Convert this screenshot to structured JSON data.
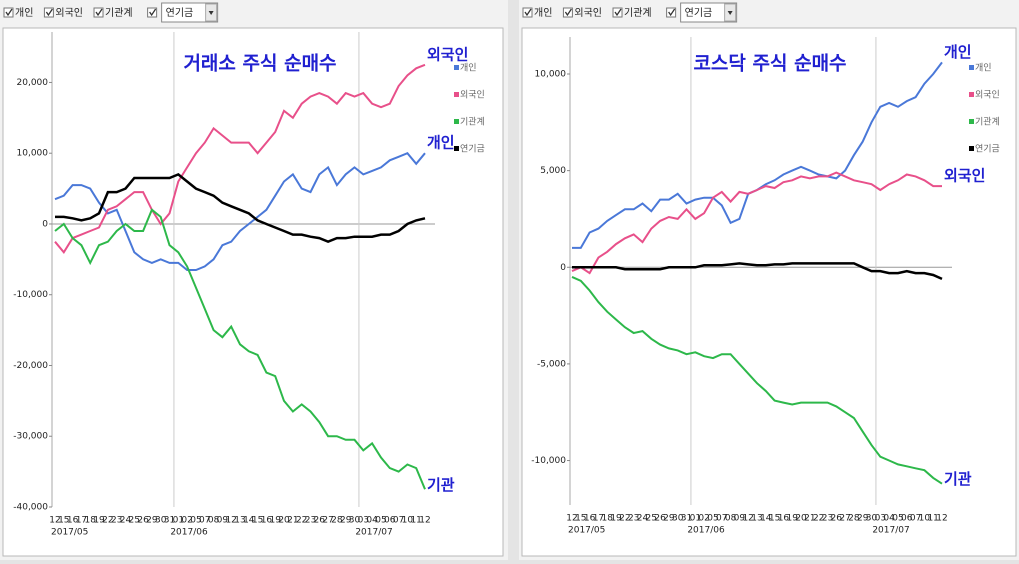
{
  "toolbars": [
    {
      "checkboxes": [
        "개인",
        "외국인",
        "기관계"
      ],
      "dropdown": "연기금"
    },
    {
      "checkboxes": [
        "개인",
        "외국인",
        "기관계"
      ],
      "dropdown": "연기금"
    }
  ],
  "chart_data": [
    {
      "type": "line",
      "title": "거래소 주식 순매수",
      "categories": [
        "12",
        "15",
        "16",
        "17",
        "18",
        "19",
        "22",
        "23",
        "24",
        "25",
        "26",
        "29",
        "30",
        "31",
        "01",
        "02",
        "05",
        "07",
        "08",
        "09",
        "12",
        "13",
        "14",
        "15",
        "16",
        "19",
        "20",
        "21",
        "22",
        "23",
        "26",
        "27",
        "28",
        "29",
        "30",
        "03",
        "04",
        "05",
        "06",
        "07",
        "10",
        "11",
        "12"
      ],
      "months": [
        "2017/05",
        "2017/06",
        "2017/07"
      ],
      "ylim": [
        -40000,
        26000
      ],
      "yticks": [
        {
          "value": -40000,
          "label": "-40,000"
        },
        {
          "value": -30000,
          "label": "-30,000"
        },
        {
          "value": -20000,
          "label": "-20,000"
        },
        {
          "value": -10000,
          "label": "-10,000"
        },
        0,
        {
          "value": 10000,
          "label": "10,000"
        },
        {
          "value": 20000,
          "label": "20,000"
        }
      ],
      "series": [
        {
          "name": "개인",
          "color": "#4a78d8",
          "end_label": "개인",
          "values": [
            3500,
            4000,
            5500,
            5500,
            5000,
            3000,
            1500,
            2000,
            -1000,
            -4000,
            -5000,
            -5500,
            -5000,
            -5500,
            -5500,
            -6500,
            -6500,
            -6000,
            -5000,
            -3000,
            -2500,
            -1000,
            0,
            1000,
            2000,
            4000,
            6000,
            7000,
            5000,
            4500,
            7000,
            8000,
            5500,
            7000,
            8000,
            7000,
            7500,
            8000,
            9000,
            9500,
            10000,
            8500,
            10000
          ]
        },
        {
          "name": "외국인",
          "color": "#e8508a",
          "end_label": "외국인",
          "values": [
            -2500,
            -4000,
            -2000,
            -1500,
            -1000,
            -500,
            2000,
            2500,
            3500,
            4500,
            4500,
            2000,
            0,
            1500,
            6000,
            8000,
            10000,
            11500,
            13500,
            12500,
            11500,
            11500,
            11500,
            10000,
            11500,
            13000,
            16000,
            15000,
            17000,
            18000,
            18500,
            18000,
            17000,
            18500,
            18000,
            18500,
            17000,
            16500,
            17000,
            19500,
            21000,
            22000,
            22500
          ]
        },
        {
          "name": "기관계",
          "color": "#2db84a",
          "end_label": "기관",
          "values": [
            -1000,
            0,
            -2000,
            -3000,
            -5500,
            -3000,
            -2500,
            -1000,
            0,
            -1000,
            -1000,
            2000,
            1000,
            -3000,
            -4000,
            -6000,
            -9000,
            -12000,
            -15000,
            -16000,
            -14500,
            -17000,
            -18000,
            -18500,
            -21000,
            -21500,
            -25000,
            -26500,
            -25500,
            -26500,
            -28000,
            -30000,
            -30000,
            -30500,
            -30500,
            -32000,
            -31000,
            -33000,
            -34500,
            -35000,
            -34000,
            -34500,
            -37500
          ]
        },
        {
          "name": "연기금",
          "color": "#000000",
          "values": [
            1000,
            1000,
            800,
            500,
            800,
            1500,
            4500,
            4500,
            5000,
            6500,
            6500,
            6500,
            6500,
            6500,
            7000,
            6000,
            5000,
            4500,
            4000,
            3000,
            2500,
            2000,
            1500,
            500,
            0,
            -500,
            -1000,
            -1500,
            -1500,
            -1800,
            -2000,
            -2500,
            -2000,
            -2000,
            -1800,
            -1800,
            -1800,
            -1500,
            -1500,
            -1000,
            0,
            500,
            800
          ]
        }
      ]
    },
    {
      "type": "line",
      "title": "코스닥 주식 순매수",
      "categories": [
        "12",
        "15",
        "16",
        "17",
        "18",
        "19",
        "22",
        "23",
        "24",
        "25",
        "26",
        "29",
        "30",
        "31",
        "01",
        "02",
        "05",
        "07",
        "08",
        "09",
        "12",
        "13",
        "14",
        "15",
        "16",
        "19",
        "20",
        "21",
        "22",
        "23",
        "26",
        "27",
        "28",
        "29",
        "30",
        "03",
        "04",
        "05",
        "06",
        "07",
        "10",
        "11",
        "12"
      ],
      "months": [
        "2017/05",
        "2017/06",
        "2017/07"
      ],
      "ylim": [
        -12300,
        11500
      ],
      "yticks": [
        {
          "value": -10000,
          "label": "-10,000"
        },
        {
          "value": -5000,
          "label": "-5,000"
        },
        0,
        {
          "value": 5000,
          "label": "5,000"
        },
        {
          "value": 10000,
          "label": "10,000"
        }
      ],
      "series": [
        {
          "name": "개인",
          "color": "#4a78d8",
          "end_label": "개인",
          "values": [
            1000,
            1000,
            1800,
            2000,
            2400,
            2700,
            3000,
            3000,
            3300,
            2900,
            3500,
            3500,
            3800,
            3300,
            3500,
            3600,
            3600,
            3200,
            2300,
            2500,
            3800,
            4000,
            4300,
            4500,
            4800,
            5000,
            5200,
            5000,
            4800,
            4700,
            4600,
            5000,
            5800,
            6500,
            7500,
            8300,
            8500,
            8300,
            8600,
            8800,
            9500,
            10000,
            10600
          ]
        },
        {
          "name": "외국인",
          "color": "#e8508a",
          "end_label": "외국인",
          "values": [
            -200,
            0,
            -300,
            500,
            800,
            1200,
            1500,
            1700,
            1300,
            2000,
            2400,
            2600,
            2500,
            3000,
            2500,
            2800,
            3600,
            3900,
            3400,
            3900,
            3800,
            4000,
            4200,
            4100,
            4400,
            4500,
            4700,
            4600,
            4700,
            4700,
            4900,
            4700,
            4500,
            4400,
            4300,
            4000,
            4300,
            4500,
            4800,
            4700,
            4500,
            4200,
            4200
          ]
        },
        {
          "name": "기관계",
          "color": "#2db84a",
          "end_label": "기관",
          "values": [
            -500,
            -700,
            -1200,
            -1800,
            -2300,
            -2700,
            -3100,
            -3400,
            -3300,
            -3700,
            -4000,
            -4200,
            -4300,
            -4500,
            -4400,
            -4600,
            -4700,
            -4500,
            -4500,
            -5000,
            -5500,
            -6000,
            -6400,
            -6900,
            -7000,
            -7100,
            -7000,
            -7000,
            -7000,
            -7000,
            -7200,
            -7500,
            -7800,
            -8500,
            -9200,
            -9800,
            -10000,
            -10200,
            -10300,
            -10400,
            -10500,
            -10900,
            -11200
          ]
        },
        {
          "name": "연기금",
          "color": "#000000",
          "values": [
            0,
            0,
            0,
            0,
            0,
            0,
            -100,
            -100,
            -100,
            -100,
            -100,
            0,
            0,
            0,
            0,
            100,
            100,
            100,
            150,
            200,
            150,
            100,
            100,
            150,
            150,
            200,
            200,
            200,
            200,
            200,
            200,
            200,
            200,
            0,
            -200,
            -200,
            -300,
            -300,
            -200,
            -300,
            -300,
            -400,
            -600
          ]
        }
      ]
    }
  ]
}
